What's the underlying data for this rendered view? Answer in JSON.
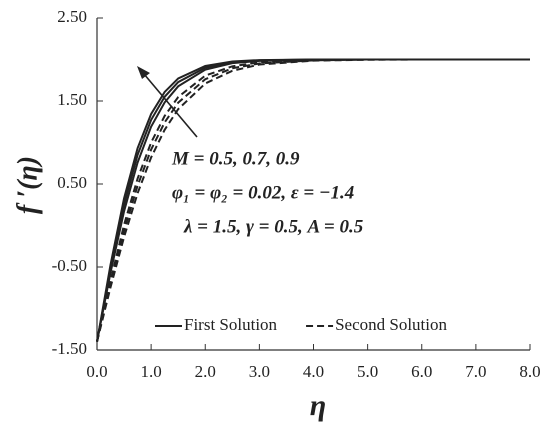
{
  "chart_data": {
    "type": "line",
    "x_label": "η",
    "y_label": "f ′(η)",
    "annotations": [
      "M = 0.5, 0.7, 0.9",
      "φ₁ = φ₂ = 0.02, ε = −1.4",
      "λ = 1.5, γ = 0.5, A = 0.5"
    ],
    "x": [
      0,
      0.25,
      0.5,
      0.75,
      1,
      1.25,
      1.5,
      2,
      2.5,
      3,
      4,
      5,
      6,
      7,
      8
    ],
    "series": [
      {
        "name": "First Solution",
        "color": "#222222",
        "dashed": false,
        "values": [
          -1.4,
          -0.567,
          0.171,
          0.759,
          1.191,
          1.483,
          1.677,
          1.878,
          1.956,
          1.983,
          1.997,
          2,
          2,
          2,
          2
        ]
      },
      {
        "name": "First Solution",
        "color": "#222222",
        "dashed": false,
        "values": [
          -1.4,
          -0.519,
          0.249,
          0.851,
          1.272,
          1.551,
          1.728,
          1.901,
          1.966,
          1.99,
          2,
          2,
          2,
          2,
          2
        ]
      },
      {
        "name": "First Solution",
        "color": "#222222",
        "dashed": false,
        "values": [
          -1.4,
          -0.472,
          0.327,
          0.932,
          1.344,
          1.609,
          1.772,
          1.922,
          1.976,
          1.993,
          2,
          2,
          2,
          2,
          2
        ]
      },
      {
        "name": "Second Solution",
        "color": "#222222",
        "dashed": true,
        "values": [
          -1.4,
          -0.744,
          -0.139,
          0.388,
          0.82,
          1.153,
          1.402,
          1.711,
          1.864,
          1.939,
          1.986,
          1.997,
          2,
          2,
          2
        ]
      },
      {
        "name": "Second Solution",
        "color": "#222222",
        "dashed": true,
        "values": [
          -1.4,
          -0.706,
          -0.064,
          0.48,
          0.915,
          1.242,
          1.48,
          1.762,
          1.895,
          1.952,
          1.99,
          2,
          2,
          2,
          2
        ]
      },
      {
        "name": "Second Solution",
        "color": "#222222",
        "dashed": true,
        "values": [
          -1.4,
          -0.666,
          0.008,
          0.565,
          1,
          1.32,
          1.548,
          1.806,
          1.918,
          1.966,
          1.993,
          2,
          2,
          2,
          2
        ]
      }
    ],
    "xlim": [
      0,
      8
    ],
    "xticks": [
      {
        "value": 0,
        "label": "0.0"
      },
      {
        "value": 1,
        "label": "1.0"
      },
      {
        "value": 2,
        "label": "2.0"
      },
      {
        "value": 3,
        "label": "3.0"
      },
      {
        "value": 4,
        "label": "4.0"
      },
      {
        "value": 5,
        "label": "5.0"
      },
      {
        "value": 6,
        "label": "6.0"
      },
      {
        "value": 7,
        "label": "7.0"
      },
      {
        "value": 8,
        "label": "8.0"
      }
    ],
    "ylim": [
      -1.5,
      2.5
    ],
    "yticks": [
      {
        "value": -1.5,
        "label": "-1.50"
      },
      {
        "value": -0.5,
        "label": "-0.50"
      },
      {
        "value": 0.5,
        "label": "0.50"
      },
      {
        "value": 1.5,
        "label": "1.50"
      },
      {
        "value": 2.5,
        "label": "2.50"
      }
    ],
    "grid": false
  }
}
